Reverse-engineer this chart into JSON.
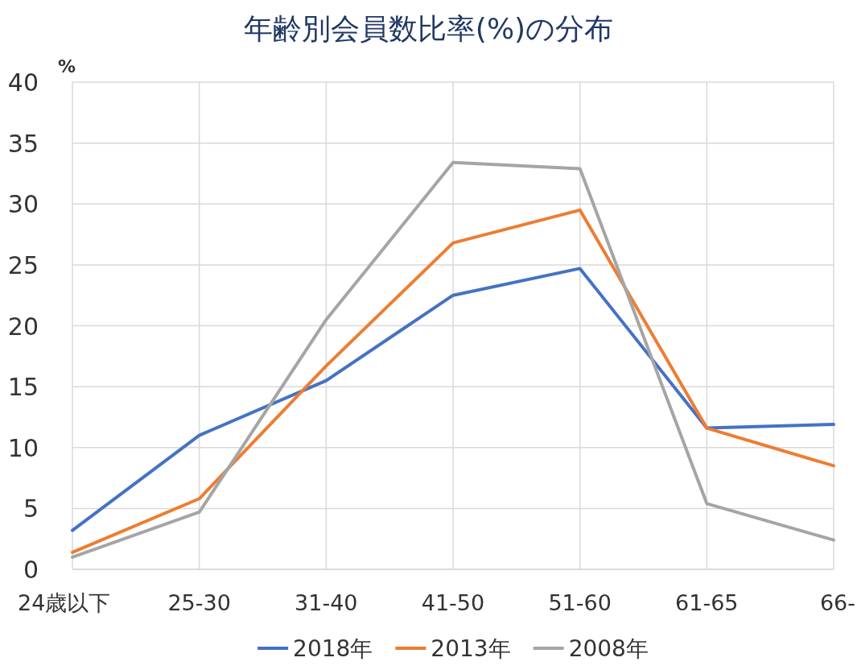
{
  "chart_data": {
    "type": "line",
    "title": "年齢別会員数比率(%)の分布",
    "ylabel": "%",
    "categories": [
      "24歳以下",
      "25-30",
      "31-40",
      "41-50",
      "51-60",
      "61-65",
      "66-"
    ],
    "series": [
      {
        "name": "2018年",
        "color": "#4472c4",
        "values": [
          3.2,
          11.0,
          15.5,
          22.5,
          24.7,
          11.6,
          11.9
        ]
      },
      {
        "name": "2013年",
        "color": "#ed7d31",
        "values": [
          1.4,
          5.8,
          16.7,
          26.8,
          29.5,
          11.6,
          8.5
        ]
      },
      {
        "name": "2008年",
        "color": "#a5a5a5",
        "values": [
          1.0,
          4.7,
          20.5,
          33.4,
          32.9,
          5.4,
          2.4
        ]
      }
    ],
    "ylim": [
      0,
      40
    ],
    "yticks": [
      0,
      5,
      10,
      15,
      20,
      25,
      30,
      35,
      40
    ],
    "grid": true,
    "legend": "bottom",
    "marker": "none",
    "line_style": "solid"
  }
}
